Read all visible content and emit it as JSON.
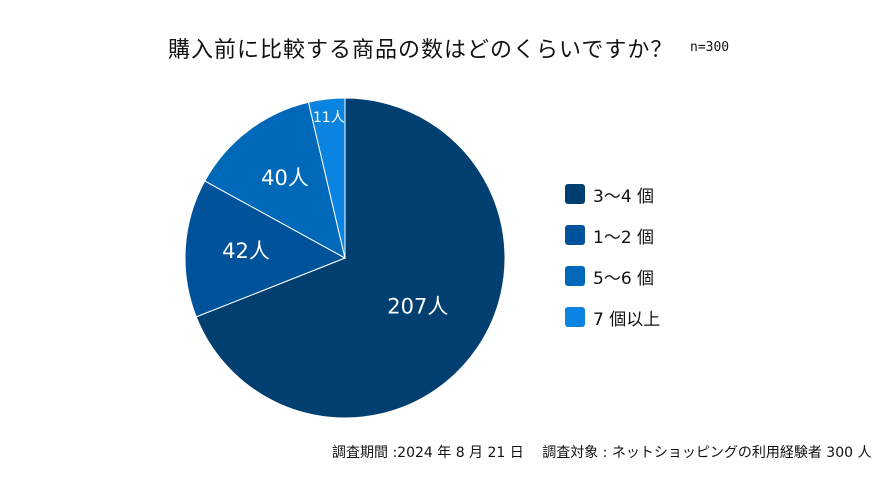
{
  "title": "購入前に比較する商品の数はどのくらいですか？",
  "sample": "n=300",
  "footer": "調査期間 :2024 年 8 月 21 日　 調査対象 : ネットショッピングの利用経験者 300 人",
  "chart_data": {
    "type": "pie",
    "title": "購入前に比較する商品の数はどのくらいですか？",
    "categories": [
      "3～4 個",
      "1～2 個",
      "5～6 個",
      "7 個以上"
    ],
    "values": [
      207,
      42,
      40,
      11
    ],
    "data_labels": [
      "207人",
      "42人",
      "40人",
      "11人"
    ],
    "colors": [
      "#003f70",
      "#00539b",
      "#0068b8",
      "#0a84e0"
    ],
    "start": "12 o'clock, clockwise",
    "legend": "right"
  }
}
